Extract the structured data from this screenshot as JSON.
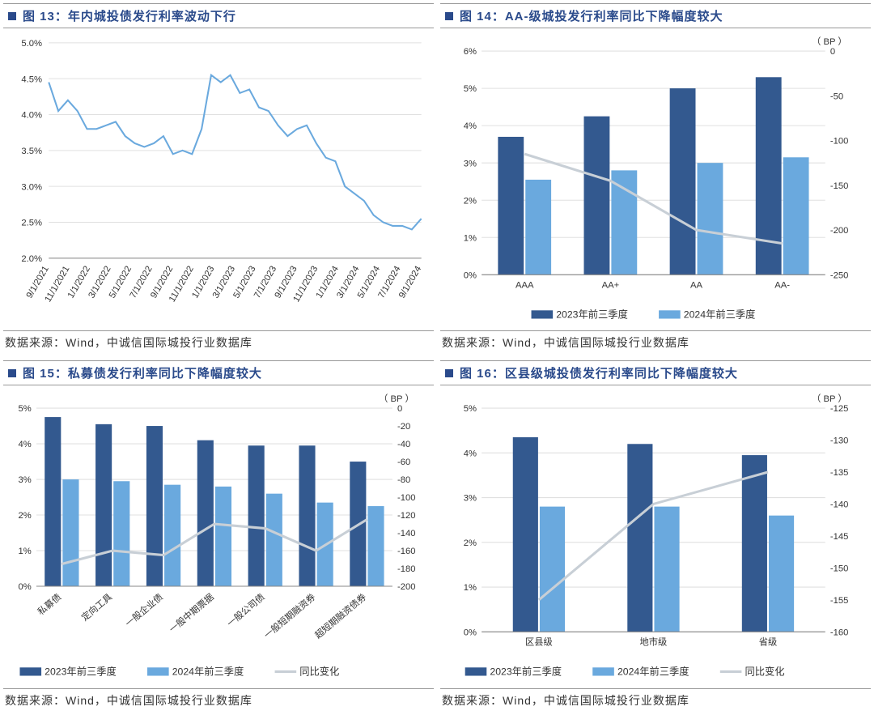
{
  "colors": {
    "dark_blue": "#33598f",
    "light_blue": "#6aa9de",
    "line_gray": "#c8cfd6",
    "title_blue": "#2a4a8b",
    "grid": "#e0e0e0",
    "bg": "#ffffff"
  },
  "chart13": {
    "title": "图 13：年内城投债发行利率波动下行",
    "source": "数据来源：Wind，中诚信国际城投行业数据库",
    "type": "line",
    "ylim": [
      2.0,
      5.0
    ],
    "ytick_step": 0.5,
    "y_format": "percent_1dec",
    "line_color": "#6aa9de",
    "line_width": 2,
    "x_labels": [
      "9/1/2021",
      "11/1/2021",
      "1/1/2022",
      "3/1/2022",
      "5/1/2022",
      "7/1/2022",
      "9/1/2022",
      "11/1/2022",
      "1/1/2023",
      "3/1/2023",
      "5/1/2023",
      "7/1/2023",
      "9/1/2023",
      "11/1/2023",
      "1/1/2024",
      "3/1/2024",
      "5/1/2024",
      "7/1/2024",
      "9/1/2024"
    ],
    "y_values": [
      4.45,
      4.05,
      4.2,
      4.05,
      3.8,
      3.8,
      3.85,
      3.9,
      3.7,
      3.6,
      3.55,
      3.6,
      3.7,
      3.45,
      3.5,
      3.45,
      3.8,
      4.55,
      4.45,
      4.55,
      4.3,
      4.35,
      4.1,
      4.05,
      3.85,
      3.7,
      3.8,
      3.85,
      3.6,
      3.4,
      3.35,
      3.0,
      2.9,
      2.8,
      2.6,
      2.5,
      2.45,
      2.45,
      2.4,
      2.55
    ],
    "x_label_rotation": -60
  },
  "chart14": {
    "title": "图 14：AA-级城投发行利率同比下降幅度较大",
    "source": "数据来源：Wind，中诚信国际城投行业数据库",
    "type": "bar_line_dual",
    "categories": [
      "AAA",
      "AA+",
      "AA",
      "AA-"
    ],
    "series_2023": {
      "label": "2023年前三季度",
      "values": [
        3.7,
        4.25,
        5.0,
        5.3
      ],
      "color": "#33598f"
    },
    "series_2024": {
      "label": "2024年前三季度",
      "values": [
        2.55,
        2.8,
        3.0,
        3.15
      ],
      "color": "#6aa9de"
    },
    "line_series": {
      "label": "同比变化",
      "values": [
        -115,
        -145,
        -200,
        -215
      ],
      "color": "#c8cfd6",
      "width": 3
    },
    "y1_lim": [
      0,
      6
    ],
    "y1_step": 1,
    "y1_format": "percent_int",
    "y2_lim": [
      -250,
      0
    ],
    "y2_step": 50,
    "y2_label": "（ BP ）",
    "bar_width": 0.3
  },
  "chart15": {
    "title": "图 15：私募债发行利率同比下降幅度较大",
    "source": "数据来源：Wind，中诚信国际城投行业数据库",
    "type": "bar_line_dual",
    "categories": [
      "私募债",
      "定向工具",
      "一般企业债",
      "一般中期票据",
      "一般公司债",
      "一般短期融资券",
      "超短期融资债券"
    ],
    "series_2023": {
      "label": "2023年前三季度",
      "values": [
        4.75,
        4.55,
        4.5,
        4.1,
        3.95,
        3.95,
        3.5
      ],
      "color": "#33598f"
    },
    "series_2024": {
      "label": "2024年前三季度",
      "values": [
        3.0,
        2.95,
        2.85,
        2.8,
        2.6,
        2.35,
        2.25
      ],
      "color": "#6aa9de"
    },
    "line_series": {
      "label": "同比变化",
      "values": [
        -175,
        -160,
        -165,
        -130,
        -135,
        -160,
        -125
      ],
      "color": "#c8cfd6",
      "width": 3
    },
    "y1_lim": [
      0,
      5
    ],
    "y1_step": 1,
    "y1_format": "percent_int",
    "y2_lim": [
      -200,
      0
    ],
    "y2_step": 20,
    "y2_label": "（ BP ）",
    "bar_width": 0.32,
    "x_label_rotation": -40
  },
  "chart16": {
    "title": "图 16：区县级城投债发行利率同比下降幅度较大",
    "source": "数据来源：Wind，中诚信国际城投行业数据库",
    "type": "bar_line_dual",
    "categories": [
      "区县级",
      "地市级",
      "省级"
    ],
    "series_2023": {
      "label": "2023年前三季度",
      "values": [
        4.35,
        4.2,
        3.95
      ],
      "color": "#33598f"
    },
    "series_2024": {
      "label": "2024年前三季度",
      "values": [
        2.8,
        2.8,
        2.6
      ],
      "color": "#6aa9de"
    },
    "line_series": {
      "label": "同比变化",
      "values": [
        -155,
        -140,
        -135
      ],
      "color": "#c8cfd6",
      "width": 3
    },
    "y1_lim": [
      0,
      5
    ],
    "y1_step": 1,
    "y1_format": "percent_int",
    "y2_lim": [
      -160,
      -125
    ],
    "y2_step": 5,
    "y2_label": "（ BP ）",
    "bar_width": 0.22
  },
  "legend_labels": {
    "s2023": "2023年前三季度",
    "s2024": "2024年前三季度",
    "change": "同比变化"
  }
}
